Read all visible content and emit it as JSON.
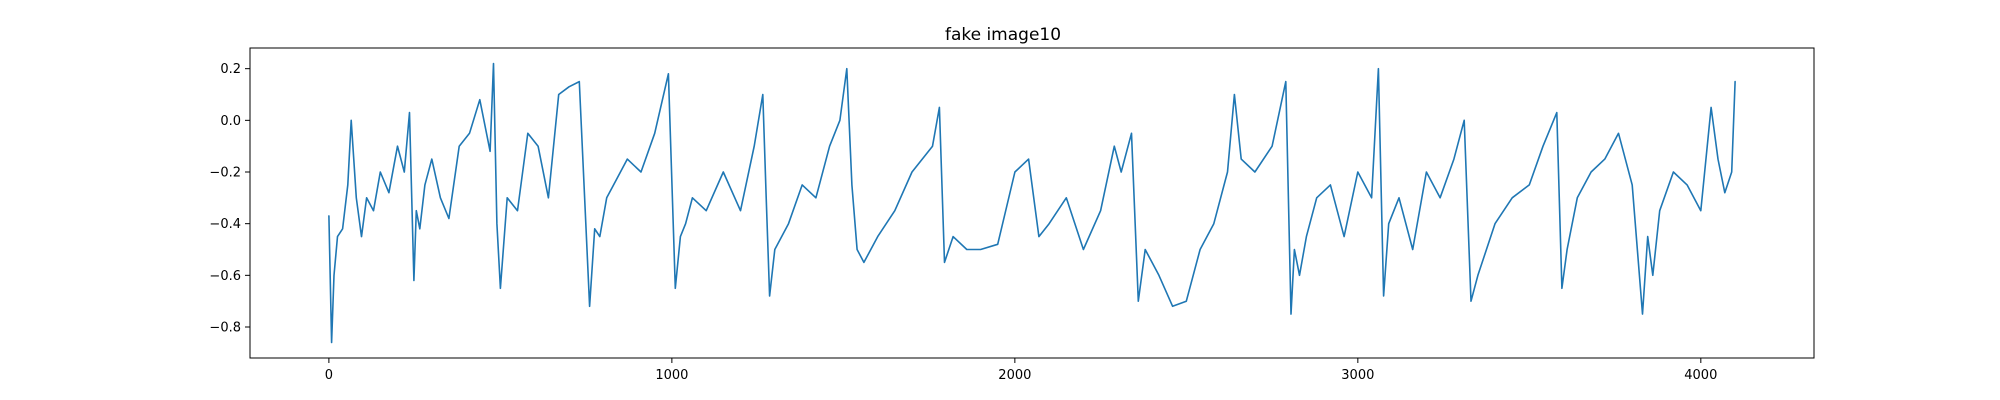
{
  "chart_data": {
    "type": "line",
    "title": "fake image10",
    "xlabel": "",
    "ylabel": "",
    "xlim": [
      -230,
      4330
    ],
    "ylim": [
      -0.92,
      0.28
    ],
    "xticks": [
      0,
      1000,
      2000,
      3000,
      4000
    ],
    "xtick_labels": [
      "0",
      "1000",
      "2000",
      "3000",
      "4000"
    ],
    "yticks": [
      0.2,
      0.0,
      -0.2,
      -0.4,
      -0.6,
      -0.8
    ],
    "ytick_labels": [
      "0.2",
      "0.0",
      "−0.2",
      "−0.4",
      "−0.6",
      "−0.8"
    ],
    "grid": false,
    "legend": "none",
    "colors": {
      "series": "#1f77b4",
      "axes": "#000000",
      "background": "#ffffff"
    },
    "series": [
      {
        "x": [
          0,
          8,
          15,
          25,
          40,
          55,
          65,
          80,
          95,
          110,
          130,
          150,
          175,
          200,
          220,
          235,
          248,
          255,
          265,
          280,
          300,
          325,
          350,
          380,
          410,
          440,
          470,
          480,
          490,
          500,
          520,
          550,
          580,
          610,
          640,
          670,
          700,
          730,
          760,
          775,
          790,
          810,
          830,
          870,
          910,
          950,
          990,
          1010,
          1025,
          1040,
          1060,
          1100,
          1150,
          1200,
          1240,
          1265,
          1275,
          1285,
          1300,
          1340,
          1380,
          1420,
          1460,
          1490,
          1510,
          1525,
          1540,
          1560,
          1600,
          1650,
          1700,
          1760,
          1780,
          1795,
          1820,
          1860,
          1900,
          1950,
          2000,
          2040,
          2070,
          2100,
          2150,
          2200,
          2250,
          2290,
          2310,
          2340,
          2360,
          2380,
          2420,
          2460,
          2500,
          2540,
          2580,
          2620,
          2640,
          2660,
          2700,
          2750,
          2790,
          2805,
          2815,
          2830,
          2850,
          2880,
          2920,
          2960,
          3000,
          3040,
          3060,
          3075,
          3090,
          3120,
          3160,
          3200,
          3240,
          3280,
          3310,
          3330,
          3350,
          3400,
          3450,
          3500,
          3540,
          3580,
          3595,
          3610,
          3640,
          3680,
          3720,
          3760,
          3800,
          3830,
          3845,
          3860,
          3880,
          3920,
          3960,
          4000,
          4030,
          4050,
          4070,
          4090,
          4100
        ],
        "y": [
          -0.37,
          -0.86,
          -0.6,
          -0.45,
          -0.42,
          -0.25,
          0.0,
          -0.3,
          -0.45,
          -0.3,
          -0.35,
          -0.2,
          -0.28,
          -0.1,
          -0.2,
          0.03,
          -0.62,
          -0.35,
          -0.42,
          -0.25,
          -0.15,
          -0.3,
          -0.38,
          -0.1,
          -0.05,
          0.08,
          -0.12,
          0.22,
          -0.4,
          -0.65,
          -0.3,
          -0.35,
          -0.05,
          -0.1,
          -0.3,
          0.1,
          0.13,
          0.15,
          -0.72,
          -0.42,
          -0.45,
          -0.3,
          -0.25,
          -0.15,
          -0.2,
          -0.05,
          0.18,
          -0.65,
          -0.45,
          -0.4,
          -0.3,
          -0.35,
          -0.2,
          -0.35,
          -0.1,
          0.1,
          -0.3,
          -0.68,
          -0.5,
          -0.4,
          -0.25,
          -0.3,
          -0.1,
          0.0,
          0.2,
          -0.25,
          -0.5,
          -0.55,
          -0.45,
          -0.35,
          -0.2,
          -0.1,
          0.05,
          -0.55,
          -0.45,
          -0.5,
          -0.5,
          -0.48,
          -0.2,
          -0.15,
          -0.45,
          -0.4,
          -0.3,
          -0.5,
          -0.35,
          -0.1,
          -0.2,
          -0.05,
          -0.7,
          -0.5,
          -0.6,
          -0.72,
          -0.7,
          -0.5,
          -0.4,
          -0.2,
          0.1,
          -0.15,
          -0.2,
          -0.1,
          0.15,
          -0.75,
          -0.5,
          -0.6,
          -0.45,
          -0.3,
          -0.25,
          -0.45,
          -0.2,
          -0.3,
          0.2,
          -0.68,
          -0.4,
          -0.3,
          -0.5,
          -0.2,
          -0.3,
          -0.15,
          0.0,
          -0.7,
          -0.6,
          -0.4,
          -0.3,
          -0.25,
          -0.1,
          0.03,
          -0.65,
          -0.5,
          -0.3,
          -0.2,
          -0.15,
          -0.05,
          -0.25,
          -0.75,
          -0.45,
          -0.6,
          -0.35,
          -0.2,
          -0.25,
          -0.35,
          0.05,
          -0.15,
          -0.28,
          -0.2,
          0.15
        ]
      }
    ]
  }
}
